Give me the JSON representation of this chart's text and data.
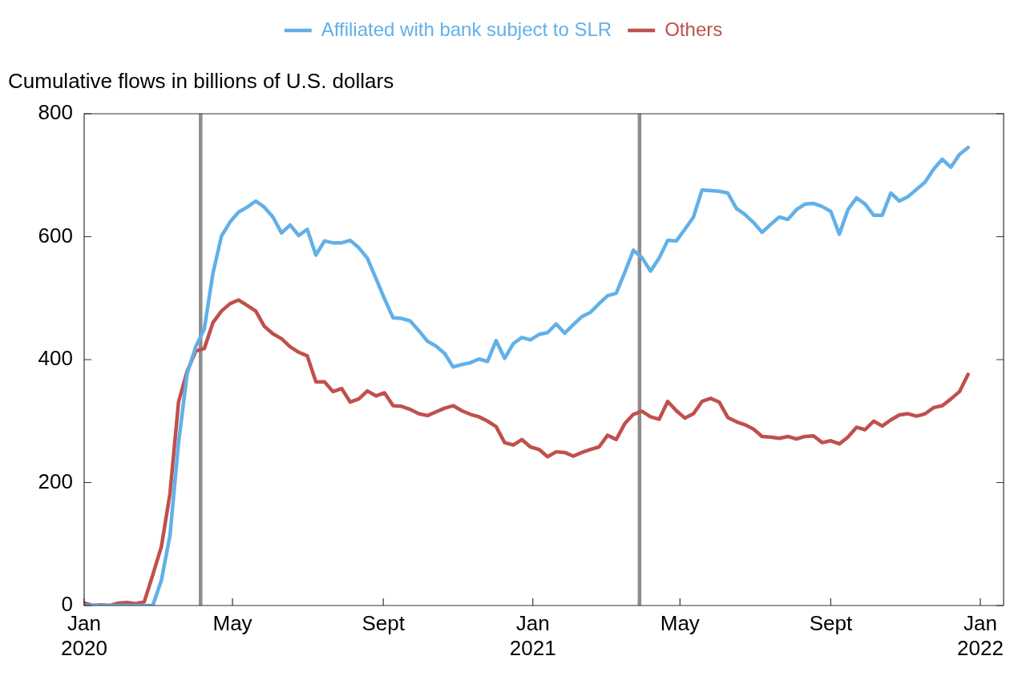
{
  "chart_data": {
    "type": "line",
    "ylabel": "Cumulative flows in billions of U.S. dollars",
    "x": [
      "2020-01-01",
      "2020-01-08",
      "2020-01-15",
      "2020-01-22",
      "2020-01-29",
      "2020-02-05",
      "2020-02-12",
      "2020-02-19",
      "2020-02-26",
      "2020-03-04",
      "2020-03-11",
      "2020-03-18",
      "2020-03-25",
      "2020-04-01",
      "2020-04-08",
      "2020-04-15",
      "2020-04-22",
      "2020-04-29",
      "2020-05-06",
      "2020-05-13",
      "2020-05-20",
      "2020-05-27",
      "2020-06-03",
      "2020-06-10",
      "2020-06-17",
      "2020-06-24",
      "2020-07-01",
      "2020-07-08",
      "2020-07-15",
      "2020-07-22",
      "2020-07-29",
      "2020-08-05",
      "2020-08-12",
      "2020-08-19",
      "2020-08-26",
      "2020-09-02",
      "2020-09-09",
      "2020-09-16",
      "2020-09-23",
      "2020-09-30",
      "2020-10-07",
      "2020-10-14",
      "2020-10-21",
      "2020-10-28",
      "2020-11-04",
      "2020-11-11",
      "2020-11-18",
      "2020-11-25",
      "2020-12-02",
      "2020-12-09",
      "2020-12-16",
      "2020-12-23",
      "2020-12-30",
      "2021-01-06",
      "2021-01-13",
      "2021-01-20",
      "2021-01-27",
      "2021-02-03",
      "2021-02-10",
      "2021-02-17",
      "2021-02-24",
      "2021-03-03",
      "2021-03-10",
      "2021-03-17",
      "2021-03-24",
      "2021-03-31",
      "2021-04-07",
      "2021-04-14",
      "2021-04-21",
      "2021-04-28",
      "2021-05-05",
      "2021-05-12",
      "2021-05-19",
      "2021-05-26",
      "2021-06-02",
      "2021-06-09",
      "2021-06-16",
      "2021-06-23",
      "2021-06-30",
      "2021-07-07",
      "2021-07-14",
      "2021-07-21",
      "2021-07-28",
      "2021-08-04",
      "2021-08-11",
      "2021-08-18",
      "2021-08-25",
      "2021-09-01",
      "2021-09-08",
      "2021-09-15",
      "2021-09-22",
      "2021-09-29",
      "2021-10-06",
      "2021-10-13",
      "2021-10-20",
      "2021-10-27",
      "2021-11-03",
      "2021-11-10",
      "2021-11-17",
      "2021-11-24",
      "2021-12-01",
      "2021-12-08",
      "2021-12-15",
      "2021-12-22"
    ],
    "series": [
      {
        "name": "Affiliated with bank subject to SLR",
        "color": "#62b0e8",
        "values": [
          0,
          0,
          0,
          0,
          0,
          0,
          0,
          0,
          0,
          41,
          114,
          265,
          377,
          421,
          450,
          540,
          601,
          624,
          640,
          648,
          658,
          648,
          632,
          606,
          619,
          602,
          612,
          570,
          593,
          590,
          590,
          594,
          582,
          565,
          532,
          499,
          468,
          467,
          463,
          447,
          430,
          422,
          410,
          388,
          392,
          395,
          401,
          397,
          431,
          402,
          426,
          436,
          432,
          441,
          444,
          458,
          443,
          457,
          470,
          477,
          491,
          504,
          508,
          542,
          578,
          566,
          544,
          565,
          594,
          593,
          612,
          632,
          676,
          675,
          674,
          671,
          646,
          636,
          623,
          607,
          620,
          632,
          628,
          644,
          653,
          654,
          649,
          641,
          604,
          644,
          663,
          653,
          635,
          635,
          671,
          658,
          665,
          677,
          689,
          710,
          726,
          713,
          734,
          745
        ]
      },
      {
        "name": "Others",
        "color": "#c0504d",
        "values": [
          4,
          0,
          1,
          0,
          4,
          5,
          3,
          6,
          50,
          96,
          182,
          331,
          381,
          414,
          418,
          460,
          479,
          491,
          497,
          488,
          479,
          454,
          442,
          434,
          421,
          412,
          406,
          364,
          364,
          348,
          353,
          331,
          336,
          349,
          341,
          346,
          325,
          324,
          319,
          312,
          309,
          315,
          321,
          325,
          317,
          311,
          307,
          300,
          291,
          265,
          261,
          270,
          258,
          254,
          242,
          250,
          249,
          243,
          249,
          254,
          258,
          277,
          270,
          296,
          311,
          316,
          307,
          303,
          332,
          317,
          305,
          312,
          332,
          337,
          331,
          306,
          299,
          294,
          287,
          275,
          274,
          272,
          275,
          271,
          275,
          276,
          265,
          268,
          263,
          274,
          290,
          286,
          300,
          292,
          302,
          310,
          312,
          308,
          312,
          322,
          325,
          336,
          348,
          376
        ]
      }
    ],
    "xlim": [
      "2020-01-01",
      "2022-01-20"
    ],
    "xticks": [
      {
        "value": "2020-01-01",
        "label": "Jan\n2020"
      },
      {
        "value": "2020-05-01",
        "label": "May"
      },
      {
        "value": "2020-09-01",
        "label": "Sept"
      },
      {
        "value": "2021-01-01",
        "label": "Jan\n2021"
      },
      {
        "value": "2021-05-01",
        "label": "May"
      },
      {
        "value": "2021-09-01",
        "label": "Sept"
      },
      {
        "value": "2022-01-01",
        "label": "Jan\n2022"
      }
    ],
    "ylim": [
      0,
      800
    ],
    "yticks": [
      0,
      200,
      400,
      600,
      800
    ],
    "ref_lines": [
      {
        "axis": "x",
        "value": "2020-04-05",
        "color": "#8c8c8c"
      },
      {
        "axis": "x",
        "value": "2021-03-29",
        "color": "#8c8c8c"
      }
    ],
    "grid": false,
    "legend": "top",
    "marker": "none",
    "line_style": "solid"
  }
}
